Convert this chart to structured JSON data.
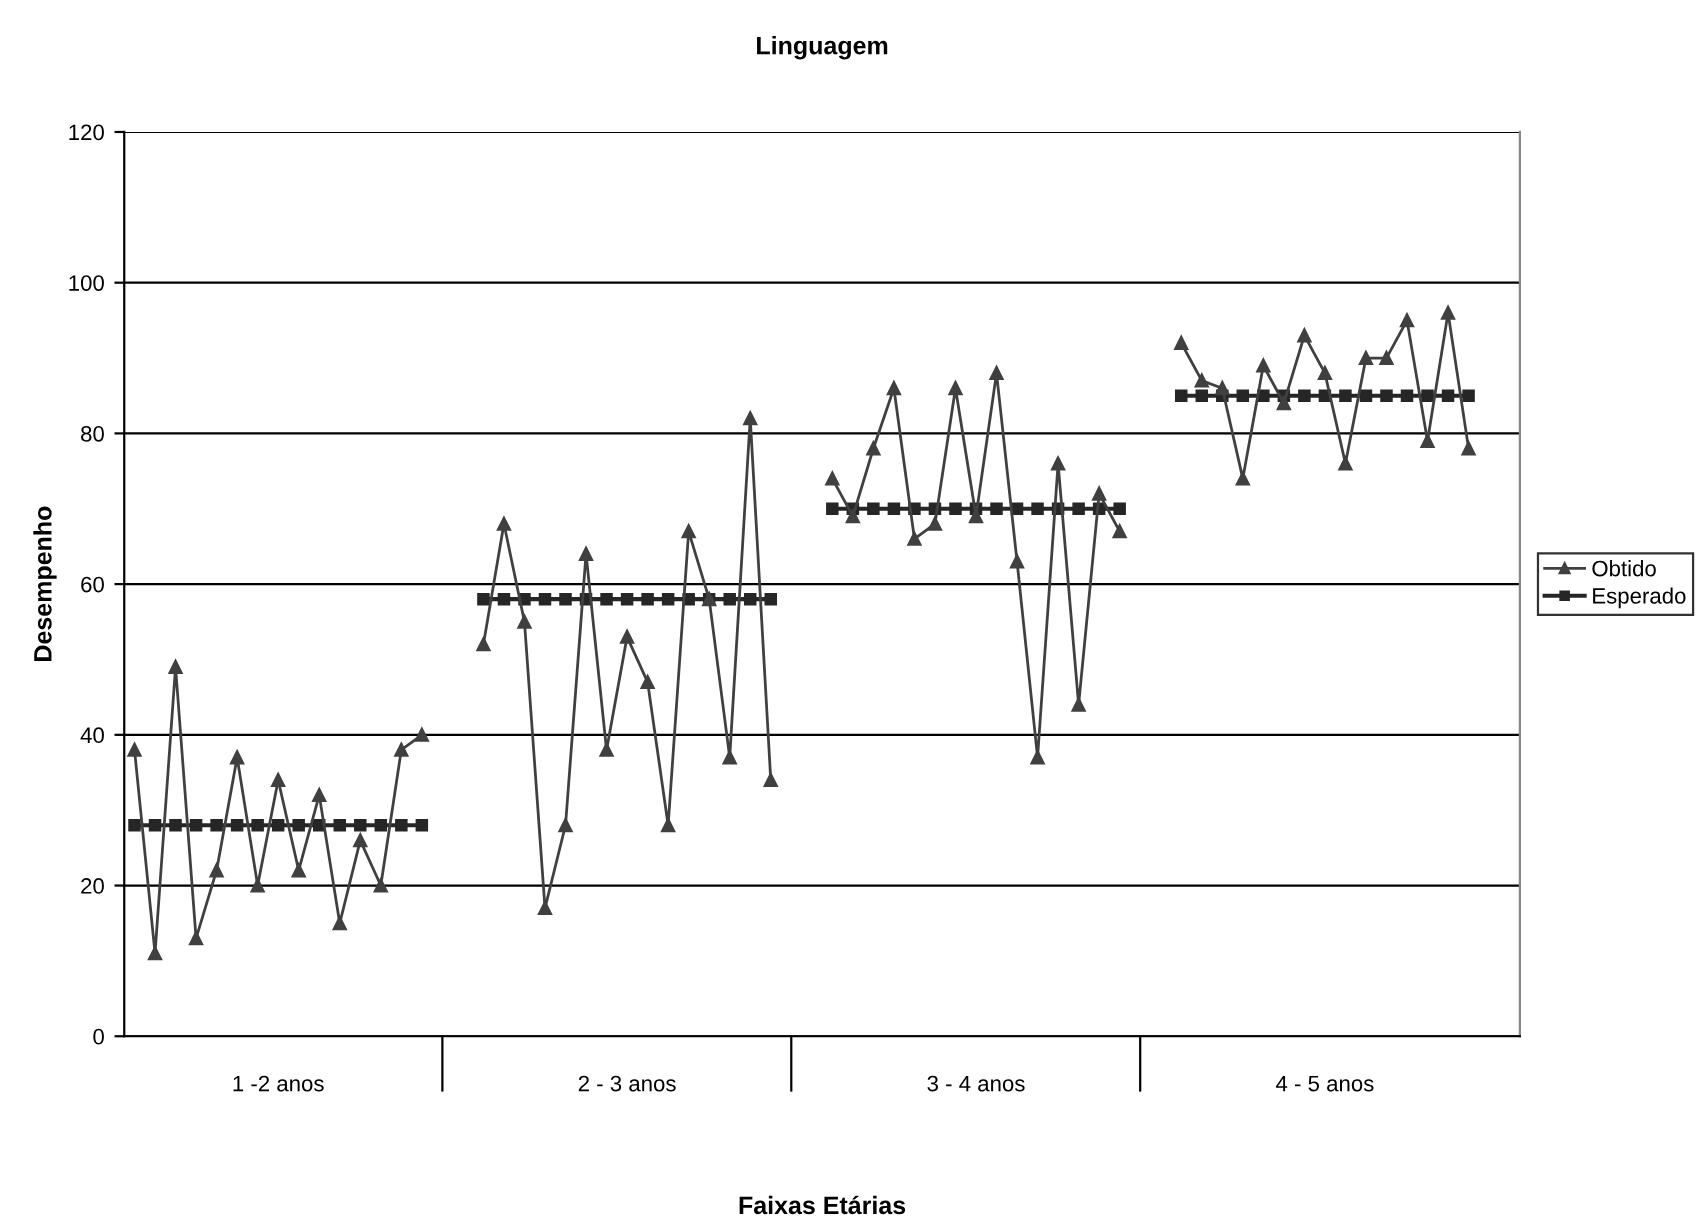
{
  "chart_data": {
    "type": "line",
    "title": "Linguagem",
    "xlabel": "Faixas Etárias",
    "ylabel": "Desempenho",
    "categories": [
      null,
      null,
      null,
      null,
      null,
      null,
      null,
      "1 -2 anos",
      null,
      null,
      null,
      null,
      null,
      null,
      null,
      null,
      null,
      null,
      null,
      null,
      null,
      null,
      null,
      null,
      "2 - 3 anos",
      null,
      null,
      null,
      null,
      null,
      null,
      null,
      null,
      null,
      null,
      null,
      null,
      null,
      null,
      null,
      null,
      "3 - 4 anos",
      null,
      null,
      null,
      null,
      null,
      null,
      null,
      null,
      null,
      null,
      null,
      null,
      null,
      null,
      null,
      null,
      "4 - 5 anos",
      null,
      null,
      null,
      null,
      null,
      null,
      null,
      null,
      null
    ],
    "series": [
      {
        "name": "Obtido",
        "color": "#404040",
        "marker": "triangle",
        "values": [
          38,
          11,
          49,
          13,
          22,
          37,
          20,
          34,
          22,
          32,
          15,
          26,
          20,
          38,
          40,
          null,
          null,
          52,
          68,
          55,
          17,
          28,
          64,
          38,
          53,
          47,
          28,
          67,
          58,
          37,
          82,
          34,
          null,
          null,
          74,
          69,
          78,
          86,
          66,
          68,
          86,
          69,
          88,
          63,
          37,
          76,
          44,
          72,
          67,
          null,
          null,
          92,
          87,
          86,
          74,
          89,
          84,
          93,
          88,
          76,
          90,
          90,
          95,
          79,
          96,
          78,
          null,
          null
        ]
      },
      {
        "name": "Esperado",
        "color": "#262626",
        "marker": "square",
        "values": [
          28,
          28,
          28,
          28,
          28,
          28,
          28,
          28,
          28,
          28,
          28,
          28,
          28,
          28,
          28,
          null,
          null,
          58,
          58,
          58,
          58,
          58,
          58,
          58,
          58,
          58,
          58,
          58,
          58,
          58,
          58,
          58,
          null,
          null,
          70,
          70,
          70,
          70,
          70,
          70,
          70,
          70,
          70,
          70,
          70,
          70,
          70,
          70,
          70,
          null,
          null,
          85,
          85,
          85,
          85,
          85,
          85,
          85,
          85,
          85,
          85,
          85,
          85,
          85,
          85,
          85,
          null,
          null
        ]
      }
    ],
    "ylim": [
      0,
      120
    ],
    "yticks": [
      0,
      20,
      40,
      60,
      80,
      100,
      120
    ],
    "grid": "y",
    "legend": "right",
    "line_style": "solid"
  }
}
